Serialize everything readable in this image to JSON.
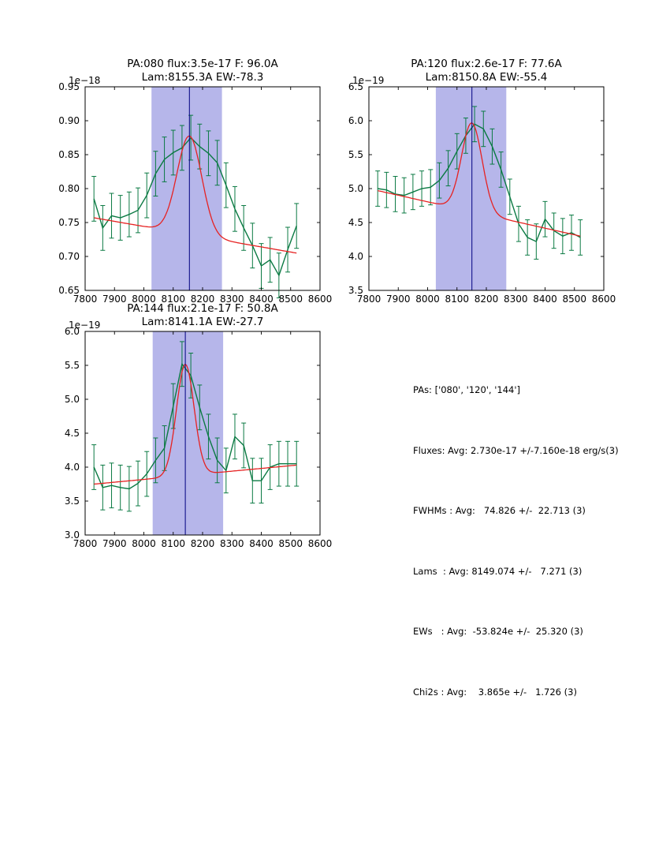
{
  "page": {
    "background": "#ffffff"
  },
  "colors": {
    "data_line": "#0b7a43",
    "fit_line": "#e62222",
    "band": "#b6b6ea",
    "center_line": "#000080",
    "axis": "#000000",
    "text": "#000000"
  },
  "summary": {
    "lines": [
      "PAs: ['080', '120', '144']",
      "Fluxes: Avg: 2.730e-17 +/-7.160e-18 erg/s(3)",
      "FWHMs : Avg:   74.826 +/-  22.713 (3)",
      "Lams  : Avg: 8149.074 +/-   7.271 (3)",
      "EWs   : Avg:  -53.824e +/-  25.320 (3)",
      "Chi2s : Avg:    3.865e +/-   1.726 (3)"
    ]
  },
  "chart_data": [
    {
      "type": "line",
      "title_line1": "PA:080 flux:3.5e-17 F: 96.0A",
      "title_line2": "Lam:8155.3A EW:-78.3",
      "offset_label": "1e−18",
      "xlim": [
        7800,
        8600
      ],
      "ylim": [
        0.65,
        0.95
      ],
      "xticks": [
        7800,
        7900,
        8000,
        8100,
        8200,
        8300,
        8400,
        8500,
        8600
      ],
      "xtick_labels": [
        "7800",
        "7900",
        "8000",
        "8100",
        "8200",
        "8300",
        "8400",
        "8500",
        "8600"
      ],
      "yticks": [
        0.65,
        0.7,
        0.75,
        0.8,
        0.85,
        0.9,
        0.95
      ],
      "ytick_labels": [
        "0.65",
        "0.70",
        "0.75",
        "0.80",
        "0.85",
        "0.90",
        "0.95"
      ],
      "band": [
        8026,
        8266
      ],
      "center": 8155.3,
      "series": {
        "x": [
          7830,
          7860,
          7890,
          7920,
          7950,
          7980,
          8010,
          8040,
          8070,
          8100,
          8130,
          8160,
          8190,
          8220,
          8250,
          8280,
          8310,
          8340,
          8370,
          8400,
          8430,
          8460,
          8490,
          8520
        ],
        "y": [
          0.785,
          0.742,
          0.76,
          0.757,
          0.762,
          0.768,
          0.79,
          0.822,
          0.843,
          0.853,
          0.86,
          0.875,
          0.862,
          0.852,
          0.838,
          0.805,
          0.77,
          0.742,
          0.716,
          0.686,
          0.695,
          0.672,
          0.71,
          0.745
        ],
        "yerr": 0.033
      },
      "fit": {
        "center": 8155.3,
        "sigma": 42,
        "amp": 0.145,
        "base_left": 0.757,
        "base_right": 0.705
      }
    },
    {
      "type": "line",
      "title_line1": "PA:120 flux:2.6e-17 F: 77.6A",
      "title_line2": "Lam:8150.8A EW:-55.4",
      "offset_label": "1e−19",
      "xlim": [
        7800,
        8600
      ],
      "ylim": [
        3.5,
        6.5
      ],
      "xticks": [
        7800,
        7900,
        8000,
        8100,
        8200,
        8300,
        8400,
        8500,
        8600
      ],
      "xtick_labels": [
        "7800",
        "7900",
        "8000",
        "8100",
        "8200",
        "8300",
        "8400",
        "8500",
        "8600"
      ],
      "yticks": [
        3.5,
        4.0,
        4.5,
        5.0,
        5.5,
        6.0,
        6.5
      ],
      "ytick_labels": [
        "3.5",
        "4.0",
        "4.5",
        "5.0",
        "5.5",
        "6.0",
        "6.5"
      ],
      "band": [
        8028,
        8268
      ],
      "center": 8150.8,
      "series": {
        "x": [
          7830,
          7860,
          7890,
          7920,
          7950,
          7980,
          8010,
          8040,
          8070,
          8100,
          8130,
          8160,
          8190,
          8220,
          8250,
          8280,
          8310,
          8340,
          8370,
          8400,
          8430,
          8460,
          8490,
          8520
        ],
        "y": [
          5.0,
          4.98,
          4.92,
          4.9,
          4.95,
          5.0,
          5.02,
          5.12,
          5.3,
          5.55,
          5.78,
          5.95,
          5.88,
          5.62,
          5.28,
          4.88,
          4.48,
          4.28,
          4.22,
          4.55,
          4.38,
          4.3,
          4.35,
          4.28
        ],
        "yerr": 0.26
      },
      "fit": {
        "center": 8150.8,
        "sigma": 35,
        "amp": 1.31,
        "base_left": 4.97,
        "base_right": 4.3
      }
    },
    {
      "type": "line",
      "title_line1": "PA:144 flux:2.1e-17 F: 50.8A",
      "title_line2": "Lam:8141.1A EW:-27.7",
      "offset_label": "1e−19",
      "xlim": [
        7800,
        8600
      ],
      "ylim": [
        3.0,
        6.0
      ],
      "xticks": [
        7800,
        7900,
        8000,
        8100,
        8200,
        8300,
        8400,
        8500,
        8600
      ],
      "xtick_labels": [
        "7800",
        "7900",
        "8000",
        "8100",
        "8200",
        "8300",
        "8400",
        "8500",
        "8600"
      ],
      "yticks": [
        3.0,
        3.5,
        4.0,
        4.5,
        5.0,
        5.5,
        6.0
      ],
      "ytick_labels": [
        "3.0",
        "3.5",
        "4.0",
        "4.5",
        "5.0",
        "5.5",
        "6.0"
      ],
      "band": [
        8030,
        8270
      ],
      "center": 8141.1,
      "series": {
        "x": [
          7830,
          7860,
          7890,
          7920,
          7950,
          7980,
          8010,
          8040,
          8070,
          8100,
          8130,
          8160,
          8190,
          8220,
          8250,
          8280,
          8310,
          8340,
          8370,
          8400,
          8430,
          8460,
          8490,
          8520
        ],
        "y": [
          4.0,
          3.7,
          3.73,
          3.7,
          3.68,
          3.76,
          3.9,
          4.1,
          4.28,
          4.9,
          5.52,
          5.35,
          4.88,
          4.45,
          4.1,
          3.95,
          4.45,
          4.32,
          3.8,
          3.8,
          4.0,
          4.05,
          4.05,
          4.05
        ],
        "yerr": 0.33
      },
      "fit": {
        "center": 8141.1,
        "sigma": 30,
        "amp": 1.64,
        "base_left": 3.75,
        "base_right": 4.03
      }
    }
  ]
}
